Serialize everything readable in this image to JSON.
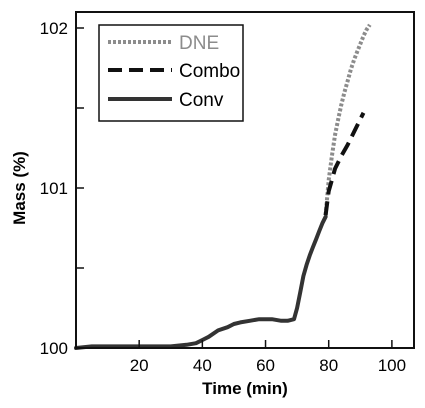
{
  "chart_data": {
    "type": "line",
    "title": "",
    "xlabel": "Time (min)",
    "ylabel": "Mass (%)",
    "xlim": [
      0,
      107
    ],
    "ylim": [
      100,
      102.1
    ],
    "x_ticks": [
      20,
      40,
      60,
      80,
      100
    ],
    "x_tick_labels": [
      "20",
      "40",
      "60",
      "80",
      "100"
    ],
    "y_ticks": [
      100,
      100.5,
      101,
      101.5,
      102
    ],
    "y_tick_labels": [
      "100",
      "",
      "101",
      "",
      "102"
    ],
    "grid": false,
    "legend_position": "top-left",
    "series": [
      {
        "name": "DNE",
        "style": "dotted",
        "color": "#8c8c8c",
        "x": [
          79,
          80,
          81,
          82,
          83,
          84,
          85,
          86,
          87,
          88,
          89,
          90,
          91,
          92,
          93
        ],
        "y": [
          100.83,
          101.05,
          101.2,
          101.33,
          101.43,
          101.52,
          101.6,
          101.67,
          101.74,
          101.8,
          101.85,
          101.9,
          101.95,
          101.99,
          102.02
        ]
      },
      {
        "name": "Combo",
        "style": "dashed",
        "color": "#111111",
        "x": [
          79,
          80,
          81,
          82,
          84,
          86,
          88,
          90,
          91
        ],
        "y": [
          100.83,
          100.98,
          101.05,
          101.12,
          101.2,
          101.27,
          101.35,
          101.43,
          101.47
        ]
      },
      {
        "name": "Conv",
        "style": "solid",
        "color": "#333333",
        "x": [
          0,
          5,
          10,
          15,
          20,
          25,
          30,
          35,
          38,
          40,
          42,
          45,
          48,
          50,
          52,
          55,
          58,
          60,
          62,
          65,
          67,
          69,
          70,
          71,
          72,
          73,
          74,
          75,
          76,
          77,
          78,
          79
        ],
        "y": [
          100,
          100.01,
          100.01,
          100.01,
          100.01,
          100.01,
          100.01,
          100.02,
          100.03,
          100.05,
          100.07,
          100.11,
          100.13,
          100.15,
          100.16,
          100.17,
          100.18,
          100.18,
          100.18,
          100.17,
          100.17,
          100.18,
          100.25,
          100.35,
          100.45,
          100.52,
          100.58,
          100.63,
          100.68,
          100.73,
          100.78,
          100.82
        ]
      }
    ]
  },
  "colors": {
    "axis": "#111111",
    "text": "#000000"
  }
}
